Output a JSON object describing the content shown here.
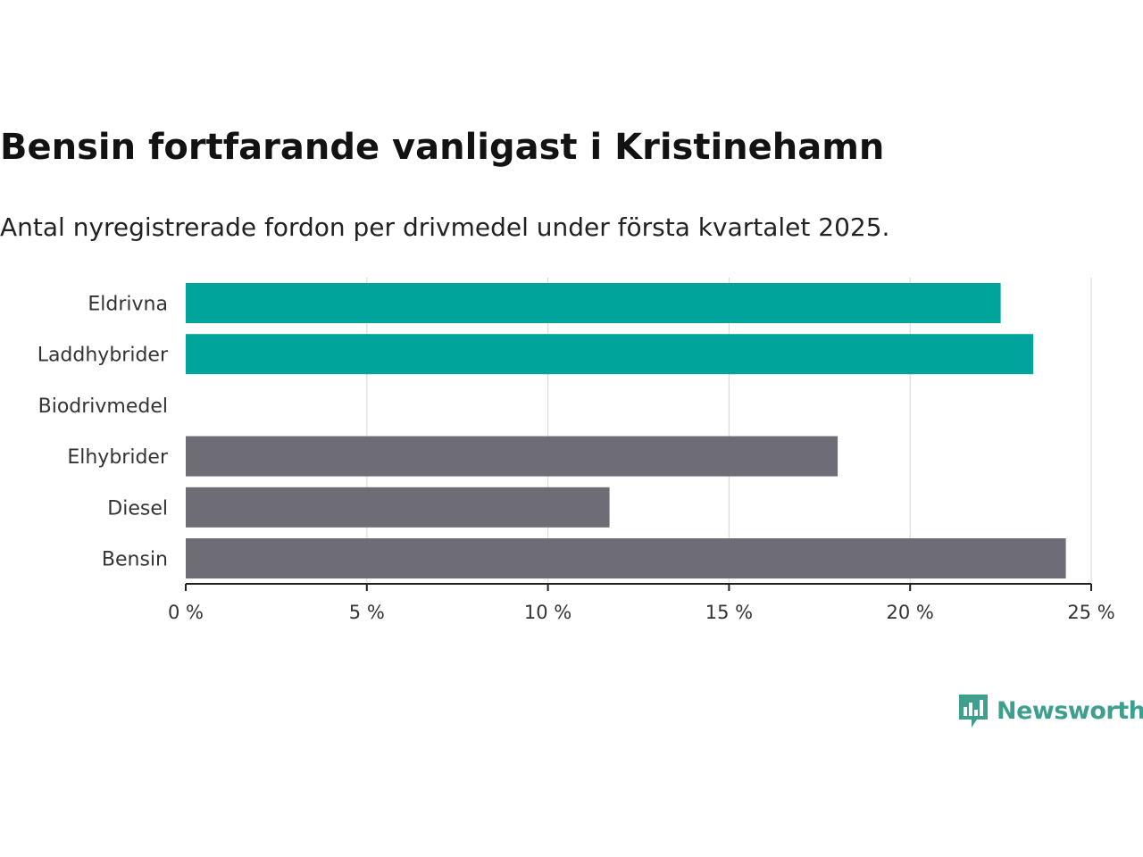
{
  "header": {
    "title": "Bensin fortfarande vanligast i Kristinehamn",
    "subtitle": "Antal nyregistrerade fordon per drivmedel under första kvartalet 2025."
  },
  "chart_data": {
    "type": "bar",
    "orientation": "horizontal",
    "categories": [
      "Eldrivna",
      "Laddhybrider",
      "Biodrivmedel",
      "Elhybrider",
      "Diesel",
      "Bensin"
    ],
    "values": [
      22.5,
      23.4,
      0,
      18.0,
      11.7,
      24.3
    ],
    "bar_colors": [
      "#00a49a",
      "#00a49a",
      "#6e6d75",
      "#6e6d75",
      "#6e6d75",
      "#6e6d75"
    ],
    "xlim": [
      0,
      25
    ],
    "xticks": [
      0,
      5,
      10,
      15,
      20,
      25
    ],
    "xtick_labels": [
      "0 %",
      "5 %",
      "10 %",
      "15 %",
      "20 %",
      "25 %"
    ],
    "grid": "vertical",
    "xlabel": "",
    "ylabel": ""
  },
  "brand": {
    "name": "Newsworthy",
    "icon": "newsworthy-logo-icon",
    "color": "#3f9f8f"
  }
}
